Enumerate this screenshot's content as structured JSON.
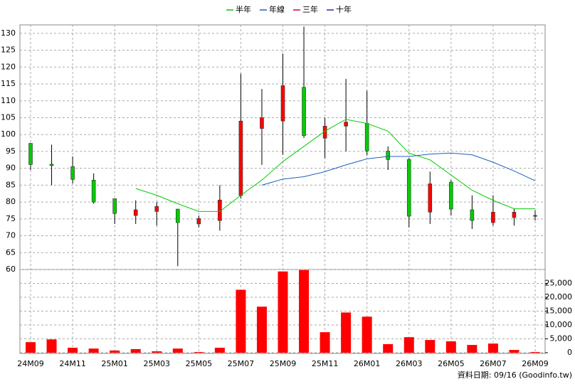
{
  "chart_data": {
    "type": "candlestick",
    "categories": [
      "24M09",
      null,
      "24M11",
      null,
      "25M01",
      null,
      "25M03",
      null,
      "25M05",
      null,
      "25M07",
      null,
      "25M09",
      null,
      "25M11",
      null,
      "26M01",
      null,
      "26M03",
      null,
      "26M05",
      null,
      "26M07",
      null,
      "26M09"
    ],
    "ohlc": {
      "open": [
        97.4,
        91.2,
        90.5,
        86.5,
        81,
        76,
        77.2,
        77.9,
        73.5,
        74.5,
        81.9,
        101.8,
        104,
        114,
        98.9,
        102.5,
        103.3,
        95.1,
        92.6,
        77,
        85.9,
        77.7,
        73.9,
        75.4,
        76
      ],
      "high": [
        97.5,
        97,
        93.5,
        88.5,
        81,
        80.5,
        80,
        78,
        76,
        85,
        118,
        113.5,
        124,
        132,
        105,
        116.5,
        113,
        96.5,
        93,
        89,
        86.5,
        82,
        82,
        78,
        77.5
      ],
      "low": [
        89.5,
        85,
        85.5,
        79.5,
        73.5,
        73.5,
        73,
        61,
        72.5,
        71.5,
        81,
        91,
        94,
        99,
        93,
        95,
        93.8,
        89.5,
        72.5,
        73.5,
        76,
        72,
        73,
        73,
        74.5
      ],
      "close": [
        91.1,
        90.8,
        86.7,
        80,
        76.6,
        77.7,
        78.7,
        73.9,
        75.1,
        80.6,
        104,
        105,
        114.5,
        99.7,
        102.5,
        103.7,
        95.1,
        92.6,
        75.8,
        85.4,
        77.9,
        74.5,
        77,
        77,
        76
      ],
      "up_color": "#ff0000",
      "down_color": "#00cc00"
    },
    "series": [
      {
        "name": "半年",
        "color": "#00cc00",
        "values": [
          null,
          null,
          null,
          null,
          null,
          84,
          82,
          79.5,
          77.2,
          77.2,
          82,
          86.5,
          92,
          96.5,
          101,
          104.5,
          103.3,
          101,
          94.5,
          92.5,
          88,
          83.5,
          80.5,
          78,
          78
        ]
      },
      {
        "name": "年線",
        "color": "#1f5fbf",
        "values": [
          null,
          null,
          null,
          null,
          null,
          null,
          null,
          null,
          null,
          null,
          null,
          85,
          86.8,
          87.5,
          89,
          91,
          92.8,
          93.5,
          93.5,
          94.2,
          94.5,
          94,
          91.8,
          89.2,
          86.3
        ]
      },
      {
        "name": "三年",
        "color": "#e0002a",
        "values": [
          null,
          null,
          null,
          null,
          null,
          null,
          null,
          null,
          null,
          null,
          null,
          null,
          null,
          null,
          null,
          null,
          null,
          null,
          null,
          null,
          null,
          null,
          null,
          null,
          null
        ]
      },
      {
        "name": "十年",
        "color": "#3a1fbf",
        "values": [
          null,
          null,
          null,
          null,
          null,
          null,
          null,
          null,
          null,
          null,
          null,
          null,
          null,
          null,
          null,
          null,
          null,
          null,
          null,
          null,
          null,
          null,
          null,
          null,
          null
        ]
      }
    ],
    "ylim": [
      60,
      132.5
    ],
    "yticks": [
      60,
      65,
      70,
      75,
      80,
      85,
      90,
      95,
      100,
      105,
      110,
      115,
      120,
      125,
      130
    ],
    "grid": true,
    "volume": {
      "color": "#ff0000",
      "values": [
        3800,
        4800,
        1800,
        1500,
        800,
        1300,
        500,
        1500,
        250,
        1800,
        22700,
        16600,
        29300,
        29800,
        7400,
        14500,
        13000,
        3100,
        5600,
        4600,
        4100,
        2800,
        3300,
        1000,
        250
      ],
      "ylim": [
        0,
        30000
      ],
      "yticks": [
        0,
        {
          "value": 5000,
          "label": "5,000"
        },
        {
          "value": 10000,
          "label": "10,000"
        },
        {
          "value": 15000,
          "label": "15,000"
        },
        {
          "value": 20000,
          "label": "20,000"
        },
        {
          "value": 25000,
          "label": "25,000"
        }
      ]
    },
    "footnote": "資料日期: 09/16  (Goodinfo.tw)"
  }
}
